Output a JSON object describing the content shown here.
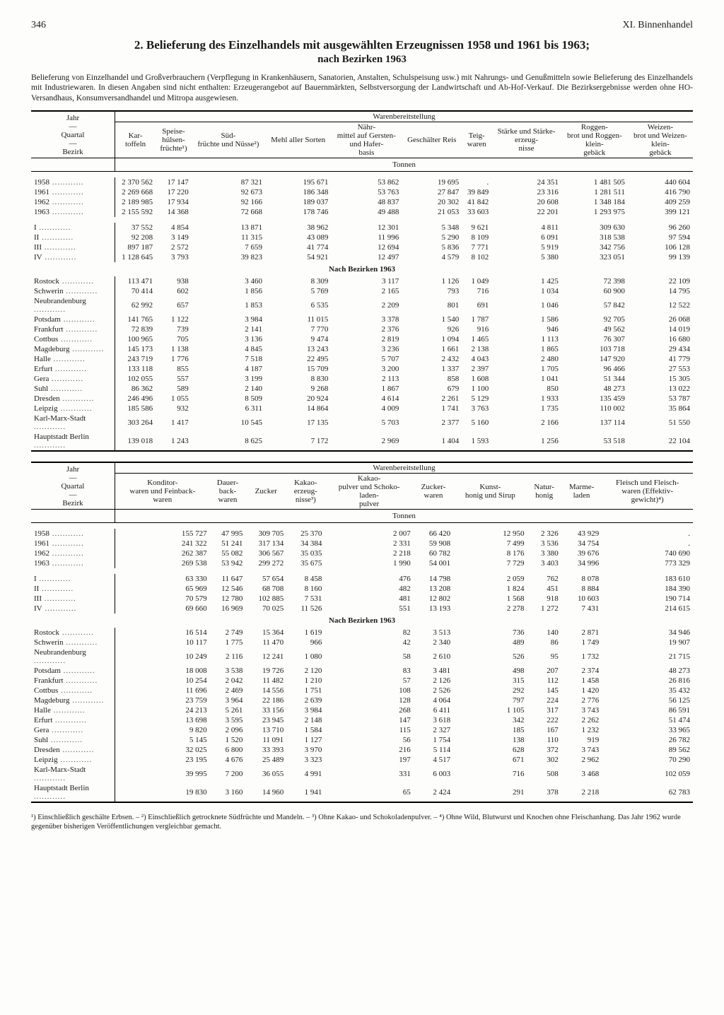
{
  "page_number": "346",
  "chapter": "XI. Binnenhandel",
  "title": "2. Belieferung des Einzelhandels mit ausgewählten Erzeugnissen 1958 und 1961 bis 1963;",
  "subtitle": "nach Bezirken 1963",
  "intro": "Belieferung von Einzelhandel und Großverbrauchern (Verpflegung in Krankenhäusern, Sanatorien, Anstalten, Schulspeisung usw.) mit Nahrungs- und Genußmitteln sowie Belieferung des Einzelhandels mit Industriewaren. In diesen Angaben sind nicht enthalten: Erzeugerangebot auf Bauernmärkten, Selbstversorgung der Landwirtschaft und Ab-Hof-Verkauf. Die Bezirksergebnisse werden ohne HO-Versandhaus, Konsumversandhandel und Mitropa ausgewiesen.",
  "stub_header": "Jahr — Quartal — Bezirk",
  "spanner": "Warenbereitstellung",
  "unit": "Tonnen",
  "section_label": "Nach Bezirken 1963",
  "table1": {
    "columns": [
      "Kar-toffeln",
      "Speise-hülsen-früchte¹)",
      "Süd-früchte und Nüsse²)",
      "Mehl aller Sorten",
      "Nähr-mittel auf Gersten- und Hafer-basis",
      "Geschälter Reis",
      "Teig-waren",
      "Stärke und Stärke-erzeug-nisse",
      "Roggen-brot und Roggen-klein-gebäck",
      "Weizen-brot und Weizen-klein-gebäck"
    ],
    "years": [
      {
        "l": "1958",
        "v": [
          "2 370 562",
          "17 147",
          "87 321",
          "195 671",
          "53 862",
          "19 695",
          ".",
          "24 351",
          "1 481 505",
          "440 604"
        ]
      },
      {
        "l": "1961",
        "v": [
          "2 269 668",
          "17 220",
          "92 673",
          "186 348",
          "53 763",
          "27 847",
          "39 849",
          "23 316",
          "1 281 511",
          "416 790"
        ]
      },
      {
        "l": "1962",
        "v": [
          "2 189 985",
          "17 934",
          "92 166",
          "189 037",
          "48 837",
          "20 302",
          "41 842",
          "20 608",
          "1 348 184",
          "409 259"
        ]
      },
      {
        "l": "1963",
        "v": [
          "2 155 592",
          "14 368",
          "72 668",
          "178 746",
          "49 488",
          "21 053",
          "33 603",
          "22 201",
          "1 293 975",
          "399 121"
        ]
      }
    ],
    "quarters": [
      {
        "l": "I",
        "v": [
          "37 552",
          "4 854",
          "13 871",
          "38 962",
          "12 301",
          "5 348",
          "9 621",
          "4 811",
          "309 630",
          "96 260"
        ]
      },
      {
        "l": "II",
        "v": [
          "92 208",
          "3 149",
          "11 315",
          "43 089",
          "11 996",
          "5 290",
          "8 109",
          "6 091",
          "318 538",
          "97 594"
        ]
      },
      {
        "l": "III",
        "v": [
          "897 187",
          "2 572",
          "7 659",
          "41 774",
          "12 694",
          "5 836",
          "7 771",
          "5 919",
          "342 756",
          "106 128"
        ]
      },
      {
        "l": "IV",
        "v": [
          "1 128 645",
          "3 793",
          "39 823",
          "54 921",
          "12 497",
          "4 579",
          "8 102",
          "5 380",
          "323 051",
          "99 139"
        ]
      }
    ],
    "districts": [
      {
        "l": "Rostock",
        "v": [
          "113 471",
          "938",
          "3 460",
          "8 309",
          "3 117",
          "1 126",
          "1 049",
          "1 425",
          "72 398",
          "22 109"
        ]
      },
      {
        "l": "Schwerin",
        "v": [
          "70 414",
          "602",
          "1 856",
          "5 769",
          "2 165",
          "793",
          "716",
          "1 034",
          "60 900",
          "14 795"
        ]
      },
      {
        "l": "Neubrandenburg",
        "v": [
          "62 992",
          "657",
          "1 853",
          "6 535",
          "2 209",
          "801",
          "691",
          "1 046",
          "57 842",
          "12 522"
        ]
      },
      {
        "l": "Potsdam",
        "v": [
          "141 765",
          "1 122",
          "3 984",
          "11 015",
          "3 378",
          "1 540",
          "1 787",
          "1 586",
          "92 705",
          "26 068"
        ]
      },
      {
        "l": "Frankfurt",
        "v": [
          "72 839",
          "739",
          "2 141",
          "7 770",
          "2 376",
          "926",
          "916",
          "946",
          "49 562",
          "14 019"
        ]
      },
      {
        "l": "Cottbus",
        "v": [
          "100 965",
          "705",
          "3 136",
          "9 474",
          "2 819",
          "1 094",
          "1 465",
          "1 113",
          "76 307",
          "16 680"
        ]
      },
      {
        "l": "Magdeburg",
        "v": [
          "145 173",
          "1 138",
          "4 845",
          "13 243",
          "3 236",
          "1 661",
          "2 138",
          "1 865",
          "103 718",
          "29 434"
        ]
      },
      {
        "l": "Halle",
        "v": [
          "243 719",
          "1 776",
          "7 518",
          "22 495",
          "5 707",
          "2 432",
          "4 043",
          "2 480",
          "147 920",
          "41 779"
        ]
      },
      {
        "l": "Erfurt",
        "v": [
          "133 118",
          "855",
          "4 187",
          "15 709",
          "3 200",
          "1 337",
          "2 397",
          "1 705",
          "96 466",
          "27 553"
        ]
      },
      {
        "l": "Gera",
        "v": [
          "102 055",
          "557",
          "3 199",
          "8 830",
          "2 113",
          "858",
          "1 608",
          "1 041",
          "51 344",
          "15 305"
        ]
      },
      {
        "l": "Suhl",
        "v": [
          "86 362",
          "589",
          "2 140",
          "9 268",
          "1 867",
          "679",
          "1 100",
          "850",
          "48 273",
          "13 022"
        ]
      },
      {
        "l": "Dresden",
        "v": [
          "246 496",
          "1 055",
          "8 509",
          "20 924",
          "4 614",
          "2 261",
          "5 129",
          "1 933",
          "135 459",
          "53 787"
        ]
      },
      {
        "l": "Leipzig",
        "v": [
          "185 586",
          "932",
          "6 311",
          "14 864",
          "4 009",
          "1 741",
          "3 763",
          "1 735",
          "110 002",
          "35 864"
        ]
      },
      {
        "l": "Karl-Marx-Stadt",
        "v": [
          "303 264",
          "1 417",
          "10 545",
          "17 135",
          "5 703",
          "2 377",
          "5 160",
          "2 166",
          "137 114",
          "51 550"
        ]
      },
      {
        "l": "Hauptstadt Berlin",
        "v": [
          "139 018",
          "1 243",
          "8 625",
          "7 172",
          "2 969",
          "1 404",
          "1 593",
          "1 256",
          "53 518",
          "22 104"
        ]
      }
    ]
  },
  "table2": {
    "columns": [
      "Konditor-waren und Feinback-waren",
      "Dauer-back-waren",
      "Zucker",
      "Kakao-erzeug-nisse³)",
      "Kakao-pulver und Schoko-laden-pulver",
      "Zucker-waren",
      "Kunst-honig und Sirup",
      "Natur-honig",
      "Marme-laden",
      "Fleisch und Fleisch-waren (Effektiv-gewicht)⁴)"
    ],
    "years": [
      {
        "l": "1958",
        "v": [
          "155 727",
          "47 995",
          "309 705",
          "25 370",
          "2 007",
          "66 420",
          "12 950",
          "2 326",
          "43 929",
          "."
        ]
      },
      {
        "l": "1961",
        "v": [
          "241 322",
          "51 241",
          "317 134",
          "34 384",
          "2 331",
          "59 908",
          "7 499",
          "3 536",
          "34 754",
          "."
        ]
      },
      {
        "l": "1962",
        "v": [
          "262 387",
          "55 082",
          "306 567",
          "35 035",
          "2 218",
          "60 782",
          "8 176",
          "3 380",
          "39 676",
          "740 690"
        ]
      },
      {
        "l": "1963",
        "v": [
          "269 538",
          "53 942",
          "299 272",
          "35 675",
          "1 990",
          "54 001",
          "7 729",
          "3 403",
          "34 996",
          "773 329"
        ]
      }
    ],
    "quarters": [
      {
        "l": "I",
        "v": [
          "63 330",
          "11 647",
          "57 654",
          "8 458",
          "476",
          "14 798",
          "2 059",
          "762",
          "8 078",
          "183 610"
        ]
      },
      {
        "l": "II",
        "v": [
          "65 969",
          "12 546",
          "68 708",
          "8 160",
          "482",
          "13 208",
          "1 824",
          "451",
          "8 884",
          "184 390"
        ]
      },
      {
        "l": "III",
        "v": [
          "70 579",
          "12 780",
          "102 885",
          "7 531",
          "481",
          "12 802",
          "1 568",
          "918",
          "10 603",
          "190 714"
        ]
      },
      {
        "l": "IV",
        "v": [
          "69 660",
          "16 969",
          "70 025",
          "11 526",
          "551",
          "13 193",
          "2 278",
          "1 272",
          "7 431",
          "214 615"
        ]
      }
    ],
    "districts": [
      {
        "l": "Rostock",
        "v": [
          "16 514",
          "2 749",
          "15 364",
          "1 619",
          "82",
          "3 513",
          "736",
          "140",
          "2 871",
          "34 946"
        ]
      },
      {
        "l": "Schwerin",
        "v": [
          "10 117",
          "1 775",
          "11 470",
          "966",
          "42",
          "2 340",
          "489",
          "86",
          "1 749",
          "19 907"
        ]
      },
      {
        "l": "Neubrandenburg",
        "v": [
          "10 249",
          "2 116",
          "12 241",
          "1 080",
          "58",
          "2 610",
          "526",
          "95",
          "1 732",
          "21 715"
        ]
      },
      {
        "l": "Potsdam",
        "v": [
          "18 008",
          "3 538",
          "19 726",
          "2 120",
          "83",
          "3 481",
          "498",
          "207",
          "2 374",
          "48 273"
        ]
      },
      {
        "l": "Frankfurt",
        "v": [
          "10 254",
          "2 042",
          "11 482",
          "1 210",
          "57",
          "2 126",
          "315",
          "112",
          "1 458",
          "26 816"
        ]
      },
      {
        "l": "Cottbus",
        "v": [
          "11 696",
          "2 469",
          "14 556",
          "1 751",
          "108",
          "2 526",
          "292",
          "145",
          "1 420",
          "35 432"
        ]
      },
      {
        "l": "Magdeburg",
        "v": [
          "23 759",
          "3 964",
          "22 186",
          "2 639",
          "128",
          "4 064",
          "797",
          "224",
          "2 776",
          "56 125"
        ]
      },
      {
        "l": "Halle",
        "v": [
          "24 213",
          "5 261",
          "33 156",
          "3 984",
          "268",
          "6 411",
          "1 105",
          "317",
          "3 743",
          "86 591"
        ]
      },
      {
        "l": "Erfurt",
        "v": [
          "13 698",
          "3 595",
          "23 945",
          "2 148",
          "147",
          "3 618",
          "342",
          "222",
          "2 262",
          "51 474"
        ]
      },
      {
        "l": "Gera",
        "v": [
          "9 820",
          "2 096",
          "13 710",
          "1 584",
          "115",
          "2 327",
          "185",
          "167",
          "1 232",
          "33 965"
        ]
      },
      {
        "l": "Suhl",
        "v": [
          "5 145",
          "1 520",
          "11 091",
          "1 127",
          "56",
          "1 754",
          "138",
          "110",
          "919",
          "26 782"
        ]
      },
      {
        "l": "Dresden",
        "v": [
          "32 025",
          "6 800",
          "33 393",
          "3 970",
          "216",
          "5 114",
          "628",
          "372",
          "3 743",
          "89 562"
        ]
      },
      {
        "l": "Leipzig",
        "v": [
          "23 195",
          "4 676",
          "25 489",
          "3 323",
          "197",
          "4 517",
          "671",
          "302",
          "2 962",
          "70 290"
        ]
      },
      {
        "l": "Karl-Marx-Stadt",
        "v": [
          "39 995",
          "7 200",
          "36 055",
          "4 991",
          "331",
          "6 003",
          "716",
          "508",
          "3 468",
          "102 059"
        ]
      },
      {
        "l": "Hauptstadt Berlin",
        "v": [
          "19 830",
          "3 160",
          "14 960",
          "1 941",
          "65",
          "2 424",
          "291",
          "378",
          "2 218",
          "62 783"
        ]
      }
    ]
  },
  "footnotes": "¹) Einschließlich geschälte Erbsen. – ²) Einschließlich getrocknete Südfrüchte und Mandeln. – ³) Ohne Kakao- und Schokoladenpulver. – ⁴) Ohne Wild, Blutwurst und Knochen ohne Fleischanhang. Das Jahr 1962 wurde gegenüber bisherigen Veröffentlichungen vergleichbar gemacht."
}
